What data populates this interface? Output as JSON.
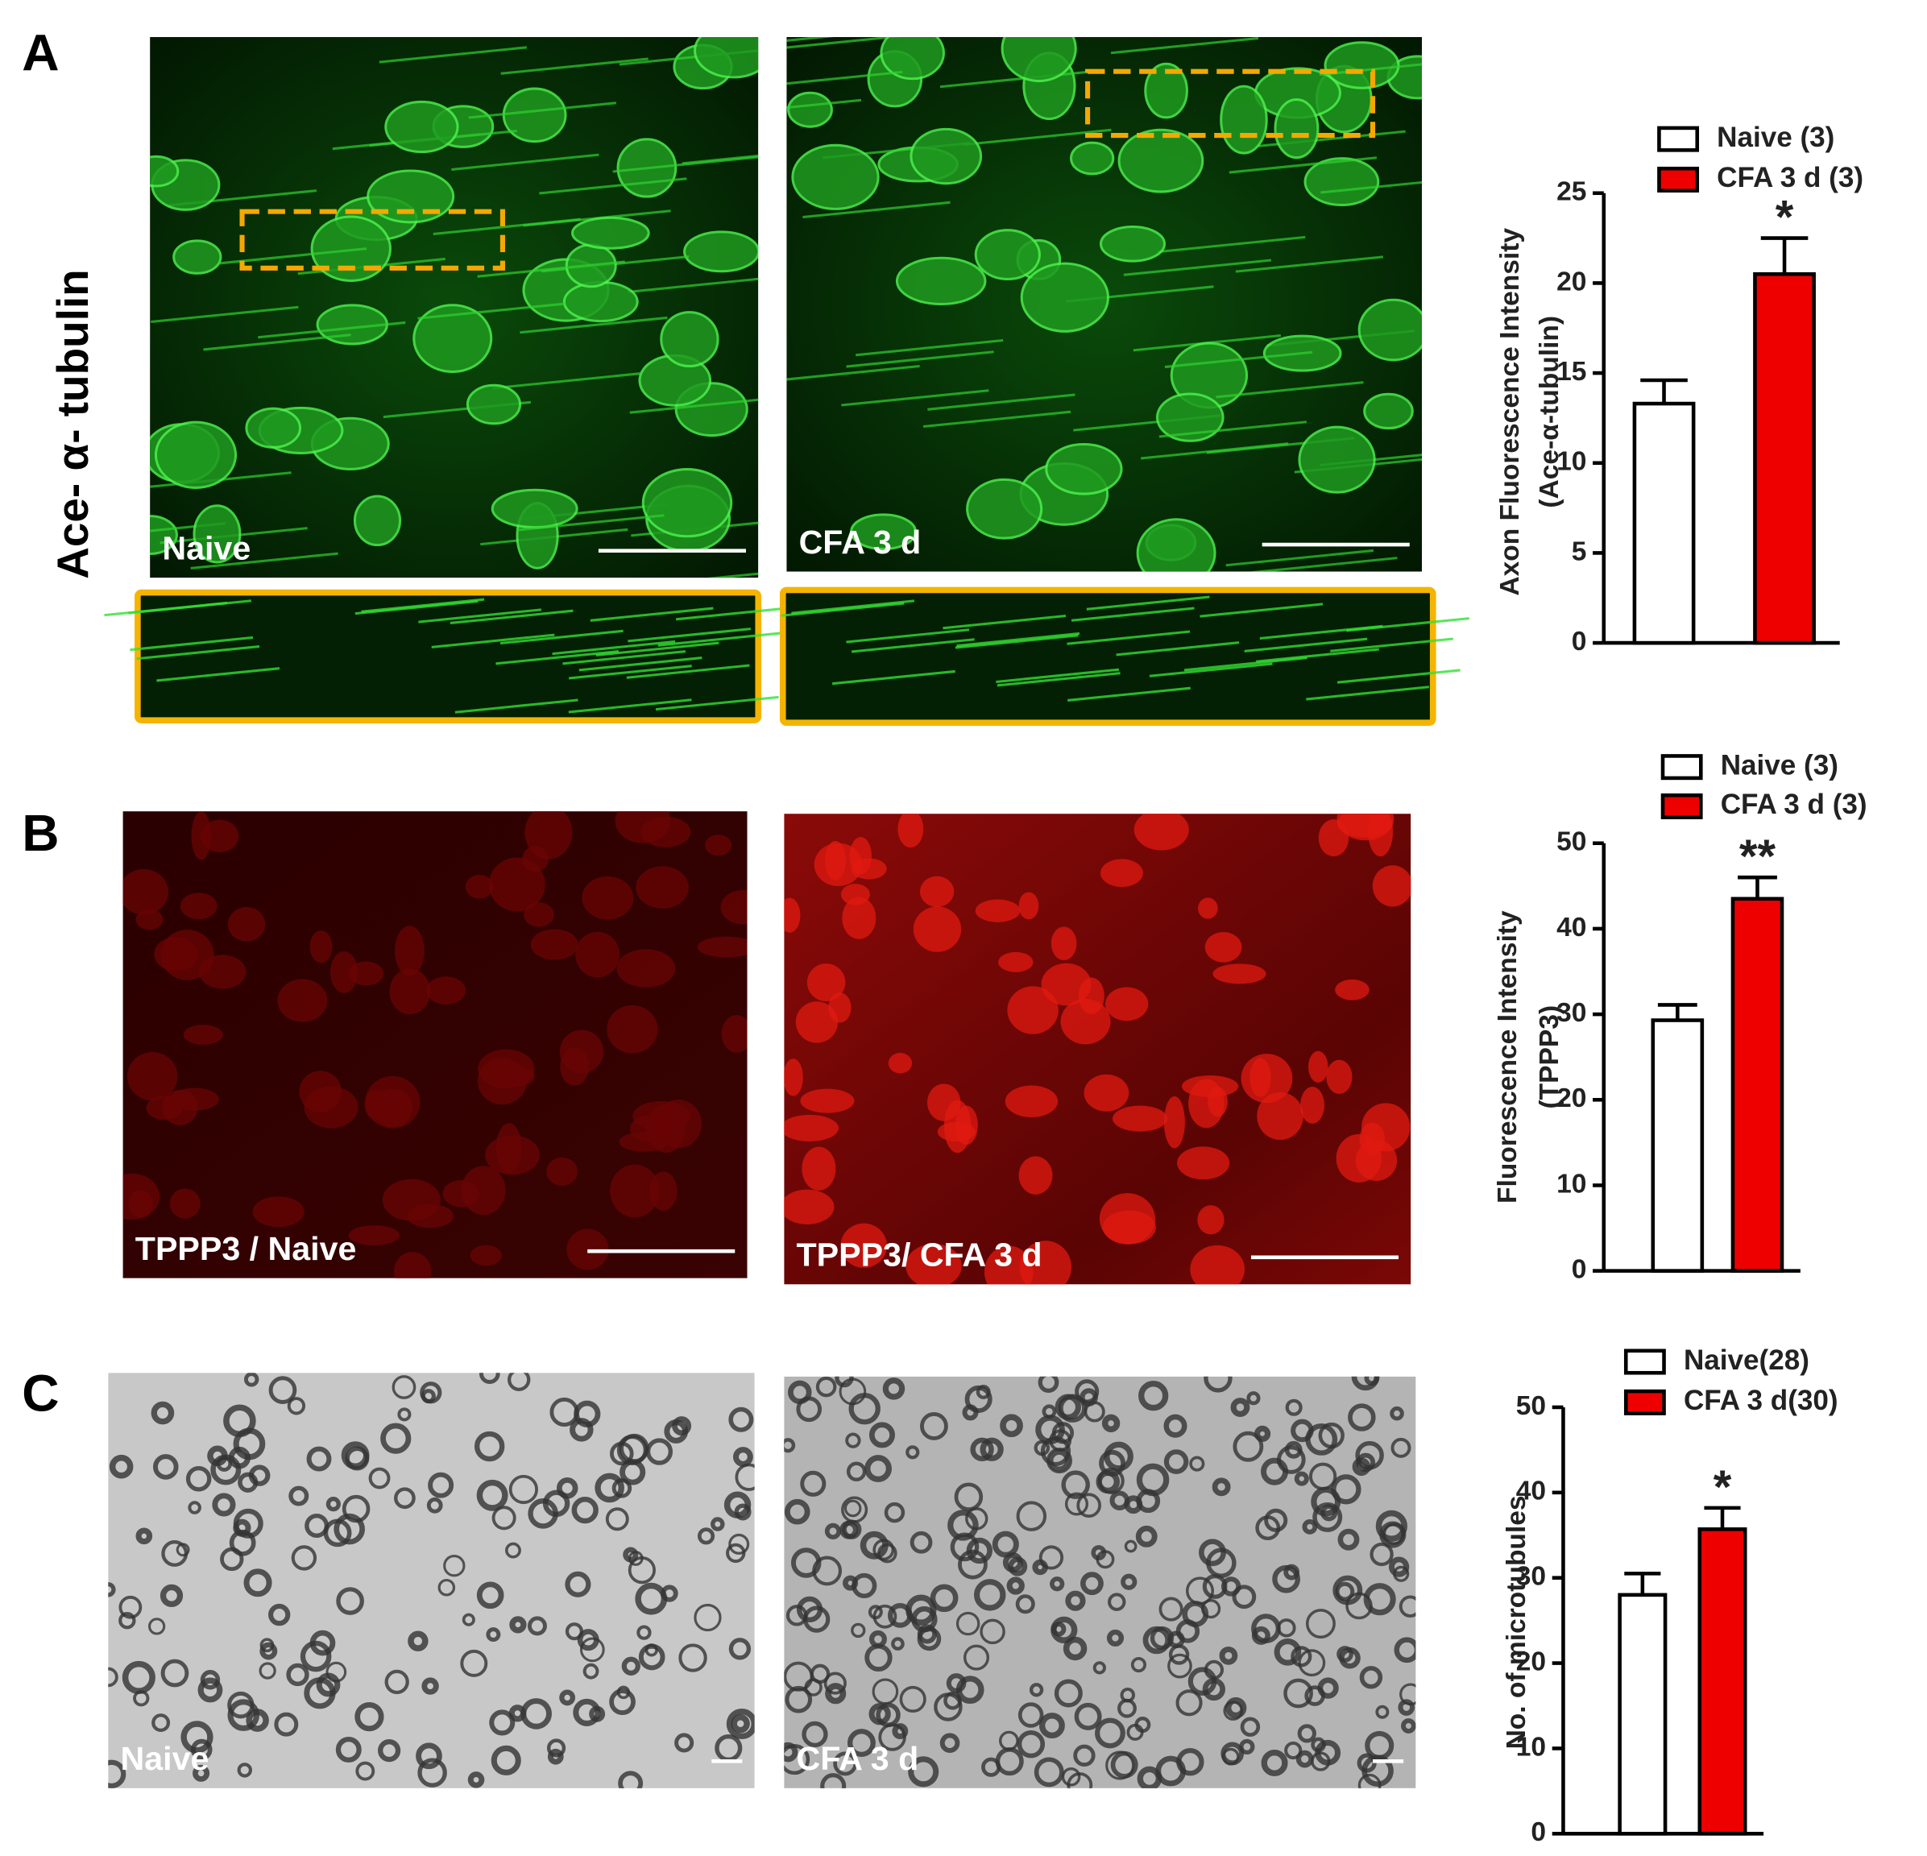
{
  "panels": [
    {
      "label": "A",
      "row_label": "Ace- α- tubulin",
      "images": [
        {
          "caption": "Naive"
        },
        {
          "caption": "CFA 3 d"
        }
      ]
    },
    {
      "label": "B",
      "images": [
        {
          "caption": "TPPP3 / Naive"
        },
        {
          "caption": "TPPP3/ CFA 3 d"
        }
      ]
    },
    {
      "label": "C",
      "images": [
        {
          "caption": "Naive"
        },
        {
          "caption": "CFA 3 d"
        }
      ]
    }
  ],
  "chart_data": [
    {
      "type": "bar",
      "ylabel": [
        "Axon Fluorescence Intensity",
        "(Ace-α-tubulin)"
      ],
      "ylim": [
        0,
        25
      ],
      "yticks": [
        0,
        5,
        10,
        15,
        20,
        25
      ],
      "series": [
        {
          "name": "Naive (3)",
          "color": "#ffffff",
          "values": [
            13.3
          ],
          "errors": [
            1.3
          ]
        },
        {
          "name": "CFA 3 d (3)",
          "color": "#ee0000",
          "values": [
            20.5
          ],
          "errors": [
            2.0
          ],
          "annotation": "*"
        }
      ]
    },
    {
      "type": "bar",
      "ylabel": [
        "Fluorescence Intensity",
        "(TPPP3)"
      ],
      "ylim": [
        0,
        50
      ],
      "yticks": [
        0,
        10,
        20,
        30,
        40,
        50
      ],
      "series": [
        {
          "name": "Naive (3)",
          "color": "#ffffff",
          "values": [
            29.3
          ],
          "errors": [
            1.8
          ]
        },
        {
          "name": "CFA 3 d (3)",
          "color": "#ee0000",
          "values": [
            43.5
          ],
          "errors": [
            2.5
          ],
          "annotation": "**"
        }
      ]
    },
    {
      "type": "bar",
      "ylabel": [
        "No. of microtubules"
      ],
      "ylim": [
        0,
        50
      ],
      "yticks": [
        0,
        10,
        20,
        30,
        40,
        50
      ],
      "series": [
        {
          "name": "Naive(28)",
          "color": "#ffffff",
          "values": [
            28.0
          ],
          "errors": [
            2.5
          ]
        },
        {
          "name": "CFA 3 d(30)",
          "color": "#ee0000",
          "values": [
            35.7
          ],
          "errors": [
            2.5
          ],
          "annotation": "*"
        }
      ]
    }
  ]
}
